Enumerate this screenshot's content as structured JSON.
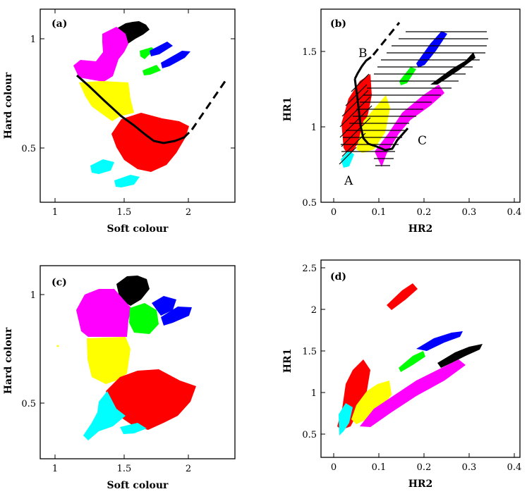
{
  "colors": {
    "black": "#000000",
    "magenta": "#ff00ff",
    "green": "#00ff00",
    "blue": "#0000ff",
    "yellow": "#ffff00",
    "red": "#ff0000",
    "cyan": "#00ffff"
  },
  "chart_data": [
    {
      "panel": "(a)",
      "type": "scatter",
      "xlabel": "Soft colour",
      "ylabel": "Hard colour",
      "xlim": [
        0.95,
        2.35
      ],
      "ylim": [
        0.27,
        1.15
      ],
      "xticks": [
        1,
        1.5,
        2
      ],
      "yticks": [
        0.5,
        1
      ],
      "series": [
        {
          "color": "black",
          "points": [
            [
              1.6,
              0.98
            ],
            [
              1.7,
              1.06
            ]
          ]
        },
        {
          "color": "magenta",
          "points": [
            [
              1.25,
              0.84
            ],
            [
              1.6,
              0.98
            ],
            [
              1.42,
              0.8
            ]
          ]
        },
        {
          "color": "green",
          "points": [
            [
              1.72,
              0.86
            ],
            [
              1.82,
              0.92
            ]
          ]
        },
        {
          "color": "blue",
          "points": [
            [
              1.85,
              0.88
            ],
            [
              2.05,
              0.96
            ]
          ]
        },
        {
          "color": "yellow",
          "points": [
            [
              1.3,
              0.7
            ],
            [
              1.55,
              0.8
            ],
            [
              1.55,
              0.6
            ]
          ]
        },
        {
          "color": "red",
          "points": [
            [
              1.5,
              0.52
            ],
            [
              2.0,
              0.58
            ],
            [
              1.75,
              0.4
            ]
          ]
        },
        {
          "color": "cyan",
          "points": [
            [
              1.3,
              0.38
            ],
            [
              1.55,
              0.42
            ],
            [
              1.45,
              0.32
            ]
          ]
        }
      ],
      "curve_solid": [
        [
          1.15,
          0.83
        ],
        [
          1.3,
          0.74
        ],
        [
          1.5,
          0.62
        ],
        [
          1.65,
          0.55
        ],
        [
          1.8,
          0.52
        ],
        [
          1.95,
          0.54
        ],
        [
          2.02,
          0.56
        ]
      ],
      "curve_dashed": [
        [
          2.02,
          0.56
        ],
        [
          2.3,
          0.8
        ]
      ]
    },
    {
      "panel": "(b)",
      "type": "scatter",
      "xlabel": "HR2",
      "ylabel": "HR1",
      "xlim": [
        -0.04,
        0.4
      ],
      "ylim": [
        0.5,
        1.75
      ],
      "xticks": [
        0,
        0.1,
        0.2,
        0.3,
        0.4
      ],
      "yticks": [
        0.5,
        1,
        1.5
      ],
      "series": [
        {
          "color": "cyan",
          "points": [
            [
              0.02,
              0.78
            ],
            [
              0.04,
              0.86
            ]
          ]
        },
        {
          "color": "red",
          "points": [
            [
              0.04,
              1.0
            ],
            [
              0.08,
              1.3
            ],
            [
              0.06,
              0.9
            ]
          ]
        },
        {
          "color": "yellow",
          "points": [
            [
              0.08,
              1.0
            ],
            [
              0.13,
              1.15
            ],
            [
              0.12,
              0.85
            ]
          ]
        },
        {
          "color": "magenta",
          "points": [
            [
              0.12,
              0.85
            ],
            [
              0.22,
              1.1
            ],
            [
              0.27,
              1.3
            ]
          ]
        },
        {
          "color": "green",
          "points": [
            [
              0.16,
              1.2
            ],
            [
              0.2,
              1.32
            ]
          ]
        },
        {
          "color": "blue",
          "points": [
            [
              0.2,
              1.35
            ],
            [
              0.25,
              1.62
            ]
          ]
        },
        {
          "color": "black",
          "points": [
            [
              0.22,
              1.25
            ],
            [
              0.3,
              1.47
            ]
          ]
        }
      ],
      "curve_solid": [
        [
          0.05,
          1.38
        ],
        [
          0.06,
          1.2
        ],
        [
          0.065,
          0.95
        ],
        [
          0.09,
          0.86
        ],
        [
          0.12,
          0.83
        ],
        [
          0.14,
          0.9
        ],
        [
          0.16,
          0.97
        ]
      ],
      "curve_dashed": [
        [
          0.085,
          1.44
        ],
        [
          0.155,
          1.72
        ]
      ],
      "annotations": [
        {
          "text": "A",
          "x": 0.035,
          "y": 0.6
        },
        {
          "text": "B",
          "x": 0.072,
          "y": 1.47
        },
        {
          "text": "C",
          "x": 0.19,
          "y": 0.87
        }
      ]
    },
    {
      "panel": "(c)",
      "type": "scatter",
      "xlabel": "Soft colour",
      "ylabel": "Hard colour",
      "xlim": [
        0.95,
        2.35
      ],
      "ylim": [
        0.27,
        1.15
      ],
      "xticks": [
        1,
        1.5,
        2
      ],
      "yticks": [
        0.5,
        1
      ],
      "series": [
        {
          "color": "black",
          "points": [
            [
              1.5,
              0.97
            ],
            [
              1.65,
              1.06
            ]
          ]
        },
        {
          "color": "magenta",
          "points": [
            [
              1.2,
              0.9
            ],
            [
              1.55,
              0.98
            ],
            [
              1.45,
              0.78
            ]
          ]
        },
        {
          "color": "green",
          "points": [
            [
              1.65,
              0.85
            ],
            [
              1.75,
              0.93
            ]
          ]
        },
        {
          "color": "blue",
          "points": [
            [
              1.8,
              0.88
            ],
            [
              2.02,
              0.96
            ]
          ]
        },
        {
          "color": "yellow",
          "points": [
            [
              1.25,
              0.7
            ],
            [
              1.5,
              0.76
            ],
            [
              1.45,
              0.6
            ]
          ]
        },
        {
          "color": "red",
          "points": [
            [
              1.45,
              0.5
            ],
            [
              2.05,
              0.55
            ],
            [
              1.7,
              0.4
            ]
          ]
        },
        {
          "color": "cyan",
          "points": [
            [
              1.3,
              0.38
            ],
            [
              1.55,
              0.42
            ],
            [
              1.4,
              0.3
            ]
          ]
        }
      ]
    },
    {
      "panel": "(d)",
      "type": "scatter",
      "xlabel": "HR2",
      "ylabel": "HR1",
      "xlim": [
        -0.04,
        0.4
      ],
      "ylim": [
        0.35,
        2.65
      ],
      "xticks": [
        0,
        0.1,
        0.2,
        0.3,
        0.4
      ],
      "yticks": [
        0.5,
        1,
        1.5,
        2,
        2.5
      ],
      "series": [
        {
          "color": "red",
          "points": [
            [
              0.04,
              0.9
            ],
            [
              0.08,
              1.3
            ],
            [
              0.02,
              0.6
            ]
          ]
        },
        {
          "color": "cyan",
          "points": [
            [
              0.01,
              0.55
            ],
            [
              0.03,
              0.75
            ]
          ]
        },
        {
          "color": "yellow",
          "points": [
            [
              0.08,
              1.0
            ],
            [
              0.12,
              1.15
            ],
            [
              0.06,
              0.65
            ]
          ]
        },
        {
          "color": "magenta",
          "points": [
            [
              0.1,
              0.9
            ],
            [
              0.2,
              1.15
            ],
            [
              0.27,
              1.3
            ]
          ]
        },
        {
          "color": "green",
          "points": [
            [
              0.16,
              1.28
            ],
            [
              0.2,
              1.42
            ]
          ]
        },
        {
          "color": "blue",
          "points": [
            [
              0.2,
              1.48
            ],
            [
              0.27,
              1.7
            ]
          ]
        },
        {
          "color": "black",
          "points": [
            [
              0.24,
              1.3
            ],
            [
              0.32,
              1.56
            ]
          ]
        },
        {
          "color": "red",
          "points": [
            [
              0.13,
              2.05
            ],
            [
              0.18,
              2.3
            ]
          ]
        }
      ]
    }
  ]
}
